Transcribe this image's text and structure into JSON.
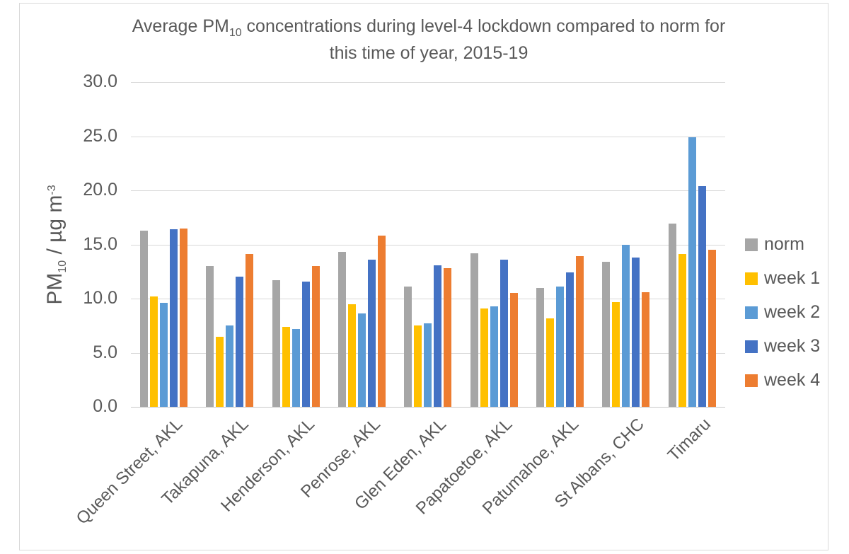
{
  "chart_data": {
    "type": "bar",
    "title": "Average PM10 concentrations during level-4 lockdown compared to norm for this time of year, 2015-19",
    "title_parts": {
      "prefix": "Average PM",
      "sub": "10",
      "line1_rest": " concentrations during level-4 lockdown compared to norm for",
      "line2": "this time of year, 2015-19"
    },
    "xlabel": "",
    "ylabel": "PM10 / µg m-3",
    "y_axis": {
      "label_prefix": "PM",
      "label_sub": "10",
      "label_mid": " / µg m",
      "label_sup": "-3",
      "min": 0,
      "max": 30,
      "tick_step": 5,
      "tick_labels": [
        "0.0",
        "5.0",
        "10.0",
        "15.0",
        "20.0",
        "25.0",
        "30.0"
      ]
    },
    "ylim": [
      0,
      30
    ],
    "grid": true,
    "legend_position": "right",
    "text_color": "#595959",
    "gridline_color": "#d9d9d9",
    "categories": [
      "Queen Street, AKL",
      "Takapuna, AKL",
      "Henderson, AKL",
      "Penrose, AKL",
      "Glen Eden, AKL",
      "Papatoetoe, AKL",
      "Patumahoe, AKL",
      "St Albans, CHC",
      "Timaru"
    ],
    "series": [
      {
        "name": "norm",
        "color": "#a6a6a6",
        "values": [
          16.3,
          13.0,
          11.7,
          14.3,
          11.1,
          14.2,
          11.0,
          13.4,
          16.9
        ]
      },
      {
        "name": "week 1",
        "color": "#ffc000",
        "values": [
          10.2,
          6.5,
          7.4,
          9.5,
          7.5,
          9.1,
          8.2,
          9.7,
          14.1
        ]
      },
      {
        "name": "week 2",
        "color": "#5b9bd5",
        "values": [
          9.6,
          7.5,
          7.2,
          8.6,
          7.7,
          9.3,
          11.1,
          15.0,
          24.9
        ]
      },
      {
        "name": "week 3",
        "color": "#4472c4",
        "values": [
          16.4,
          12.0,
          11.6,
          13.6,
          13.1,
          13.6,
          12.4,
          13.8,
          20.4
        ]
      },
      {
        "name": "week 4",
        "color": "#ed7d31",
        "values": [
          16.5,
          14.1,
          13.0,
          15.8,
          12.8,
          10.5,
          13.9,
          10.6,
          14.5
        ]
      }
    ]
  }
}
